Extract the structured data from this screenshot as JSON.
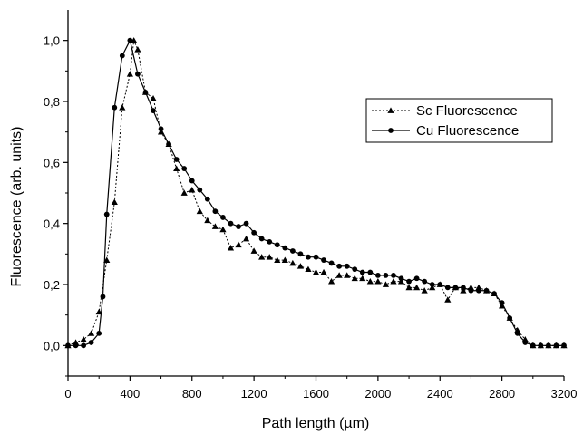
{
  "chart_data": {
    "type": "line",
    "xlabel": "Path length (µm)",
    "ylabel": "Fluorescence (arb. units)",
    "xlim": [
      0,
      3200
    ],
    "ylim": [
      -0.1,
      1.1
    ],
    "x_ticks": [
      0,
      400,
      800,
      1200,
      1600,
      2000,
      2400,
      2800,
      3200
    ],
    "x_tick_labels": [
      "0",
      "400",
      "800",
      "1200",
      "1600",
      "2000",
      "2400",
      "2800",
      "3200"
    ],
    "y_ticks": [
      0.0,
      0.2,
      0.4,
      0.6,
      0.8,
      1.0
    ],
    "y_tick_labels": [
      "0,0",
      "0,2",
      "0,4",
      "0,6",
      "0,8",
      "1,0"
    ],
    "grid": false,
    "legend_position": "upper-right",
    "series": [
      {
        "name": "Sc Fluorescence",
        "marker": "triangle",
        "line_style": "dotted",
        "color": "#000000",
        "x": [
          0,
          50,
          100,
          150,
          200,
          250,
          300,
          350,
          400,
          425,
          450,
          500,
          550,
          600,
          650,
          700,
          750,
          800,
          850,
          900,
          950,
          1000,
          1050,
          1100,
          1150,
          1200,
          1250,
          1300,
          1350,
          1400,
          1450,
          1500,
          1550,
          1600,
          1650,
          1700,
          1750,
          1800,
          1850,
          1900,
          1950,
          2000,
          2050,
          2100,
          2150,
          2200,
          2250,
          2300,
          2350,
          2400,
          2450,
          2500,
          2550,
          2600,
          2650,
          2700,
          2750,
          2800,
          2850,
          2900,
          2950,
          3000,
          3050,
          3100,
          3150,
          3200
        ],
        "y": [
          0.0,
          0.01,
          0.02,
          0.04,
          0.11,
          0.28,
          0.47,
          0.78,
          0.89,
          1.0,
          0.97,
          0.83,
          0.81,
          0.7,
          0.66,
          0.58,
          0.5,
          0.51,
          0.44,
          0.41,
          0.39,
          0.38,
          0.32,
          0.33,
          0.35,
          0.31,
          0.29,
          0.29,
          0.28,
          0.28,
          0.27,
          0.26,
          0.25,
          0.24,
          0.24,
          0.21,
          0.23,
          0.23,
          0.22,
          0.22,
          0.21,
          0.21,
          0.2,
          0.21,
          0.21,
          0.19,
          0.19,
          0.18,
          0.19,
          0.2,
          0.15,
          0.19,
          0.18,
          0.19,
          0.19,
          0.18,
          0.17,
          0.13,
          0.09,
          0.05,
          0.02,
          0.0,
          0.0,
          0.0,
          0.0,
          0.0
        ]
      },
      {
        "name": "Cu Fluorescence",
        "marker": "circle",
        "line_style": "solid",
        "color": "#000000",
        "x": [
          0,
          50,
          100,
          150,
          200,
          225,
          250,
          300,
          350,
          400,
          450,
          500,
          550,
          600,
          650,
          700,
          750,
          800,
          850,
          900,
          950,
          1000,
          1050,
          1100,
          1150,
          1200,
          1250,
          1300,
          1350,
          1400,
          1450,
          1500,
          1550,
          1600,
          1650,
          1700,
          1750,
          1800,
          1850,
          1900,
          1950,
          2000,
          2050,
          2100,
          2150,
          2200,
          2250,
          2300,
          2350,
          2400,
          2450,
          2500,
          2550,
          2600,
          2650,
          2700,
          2750,
          2800,
          2850,
          2900,
          2950,
          3000,
          3050,
          3100,
          3150,
          3200
        ],
        "y": [
          0.0,
          0.0,
          0.0,
          0.01,
          0.04,
          0.16,
          0.43,
          0.78,
          0.95,
          1.0,
          0.89,
          0.83,
          0.77,
          0.71,
          0.66,
          0.61,
          0.58,
          0.54,
          0.51,
          0.48,
          0.44,
          0.42,
          0.4,
          0.39,
          0.4,
          0.37,
          0.35,
          0.34,
          0.33,
          0.32,
          0.31,
          0.3,
          0.29,
          0.29,
          0.28,
          0.27,
          0.26,
          0.26,
          0.25,
          0.24,
          0.24,
          0.23,
          0.23,
          0.23,
          0.22,
          0.21,
          0.22,
          0.21,
          0.2,
          0.2,
          0.19,
          0.19,
          0.19,
          0.18,
          0.18,
          0.18,
          0.17,
          0.14,
          0.09,
          0.04,
          0.01,
          0.0,
          0.0,
          0.0,
          0.0,
          0.0
        ]
      }
    ]
  }
}
